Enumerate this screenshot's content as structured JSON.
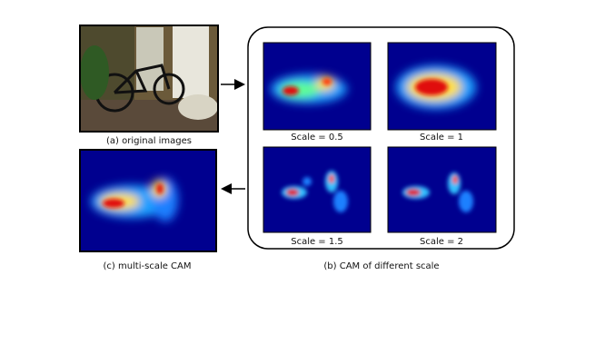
{
  "figure": {
    "original_caption": "(a) original images",
    "scale_labels": [
      "Scale = 0.5",
      "Scale = 1",
      "Scale = 1.5",
      "Scale = 2"
    ],
    "cam_caption": "(b) CAM of different scale",
    "multiscale_caption": "(c) multi-scale CAM"
  }
}
